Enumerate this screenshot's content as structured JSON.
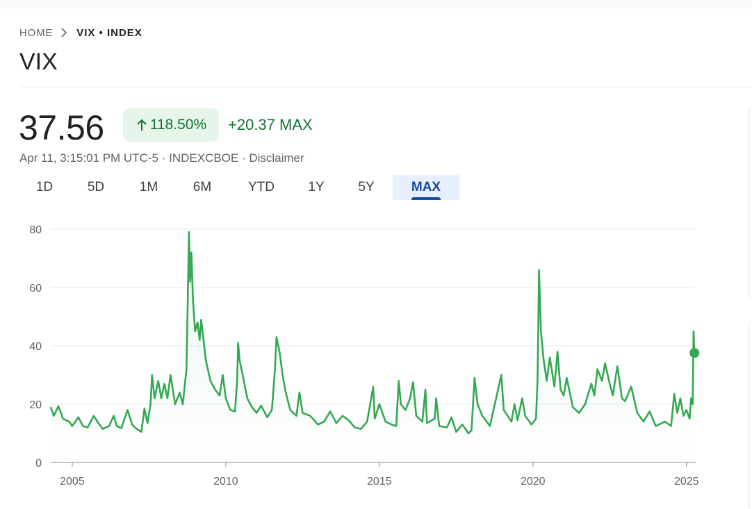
{
  "breadcrumb": {
    "home": "HOME",
    "current": "VIX • INDEX"
  },
  "page_title": "VIX",
  "quote": {
    "price": "37.56",
    "change_percent": "118.50%",
    "change_abs": "+20.37 MAX",
    "meta": "Apr 11, 3:15:01 PM UTC-5 · INDEXCBOE · Disclaimer"
  },
  "range_tabs": [
    {
      "label": "1D",
      "active": false
    },
    {
      "label": "5D",
      "active": false
    },
    {
      "label": "1M",
      "active": false
    },
    {
      "label": "6M",
      "active": false
    },
    {
      "label": "YTD",
      "active": false
    },
    {
      "label": "1Y",
      "active": false
    },
    {
      "label": "5Y",
      "active": false
    },
    {
      "label": "MAX",
      "active": true
    }
  ],
  "colors": {
    "positive": "#137333",
    "badge_bg": "#e6f4ea",
    "line": "#34a853",
    "active_tab_bg": "#e8f0fe",
    "active_tab_text": "#1a4d9c"
  },
  "icons": {
    "breadcrumb_separator": "chevron-right-icon",
    "change_arrow": "arrow-up-icon"
  },
  "chart_data": {
    "type": "line",
    "title": "",
    "xlabel": "",
    "ylabel": "",
    "xlim": [
      2004.3,
      2025.3
    ],
    "ylim": [
      0,
      80
    ],
    "y_ticks": [
      0,
      20,
      40,
      60,
      80
    ],
    "x_ticks": [
      2005,
      2010,
      2015,
      2020,
      2025
    ],
    "x_tick_labels": [
      "2005",
      "2010",
      "2015",
      "2020",
      "2025"
    ],
    "grid": true,
    "legend": "none",
    "area_fill": true,
    "series": [
      {
        "points": [
          [
            2004.3,
            19.0
          ],
          [
            2004.4,
            16.0
          ],
          [
            2004.55,
            19.3
          ],
          [
            2004.7,
            15.0
          ],
          [
            2004.9,
            14.0
          ],
          [
            2005.0,
            12.5
          ],
          [
            2005.2,
            15.5
          ],
          [
            2005.35,
            12.5
          ],
          [
            2005.5,
            12.0
          ],
          [
            2005.7,
            16.0
          ],
          [
            2005.85,
            13.5
          ],
          [
            2006.0,
            11.5
          ],
          [
            2006.2,
            12.5
          ],
          [
            2006.35,
            16.0
          ],
          [
            2006.45,
            12.5
          ],
          [
            2006.6,
            11.8
          ],
          [
            2006.8,
            18.0
          ],
          [
            2006.95,
            13.0
          ],
          [
            2007.1,
            11.5
          ],
          [
            2007.25,
            10.5
          ],
          [
            2007.35,
            18.5
          ],
          [
            2007.45,
            13.5
          ],
          [
            2007.55,
            20.0
          ],
          [
            2007.6,
            30.0
          ],
          [
            2007.68,
            22.0
          ],
          [
            2007.8,
            28.0
          ],
          [
            2007.9,
            22.0
          ],
          [
            2008.0,
            27.0
          ],
          [
            2008.1,
            22.0
          ],
          [
            2008.2,
            30.0
          ],
          [
            2008.35,
            20.0
          ],
          [
            2008.5,
            24.0
          ],
          [
            2008.6,
            20.0
          ],
          [
            2008.72,
            32.0
          ],
          [
            2008.76,
            55.0
          ],
          [
            2008.8,
            79.0
          ],
          [
            2008.84,
            62.0
          ],
          [
            2008.88,
            72.0
          ],
          [
            2008.93,
            56.0
          ],
          [
            2009.0,
            45.0
          ],
          [
            2009.08,
            48.0
          ],
          [
            2009.15,
            42.0
          ],
          [
            2009.2,
            49.0
          ],
          [
            2009.35,
            35.0
          ],
          [
            2009.5,
            28.0
          ],
          [
            2009.65,
            25.0
          ],
          [
            2009.8,
            23.0
          ],
          [
            2009.9,
            30.0
          ],
          [
            2010.0,
            22.0
          ],
          [
            2010.15,
            18.0
          ],
          [
            2010.3,
            17.5
          ],
          [
            2010.37,
            28.0
          ],
          [
            2010.4,
            41.0
          ],
          [
            2010.45,
            35.0
          ],
          [
            2010.55,
            30.0
          ],
          [
            2010.7,
            22.0
          ],
          [
            2010.85,
            19.0
          ],
          [
            2011.0,
            17.0
          ],
          [
            2011.15,
            19.5
          ],
          [
            2011.35,
            15.5
          ],
          [
            2011.5,
            18.0
          ],
          [
            2011.6,
            32.0
          ],
          [
            2011.65,
            43.0
          ],
          [
            2011.75,
            38.0
          ],
          [
            2011.85,
            30.0
          ],
          [
            2011.95,
            24.0
          ],
          [
            2012.1,
            18.0
          ],
          [
            2012.3,
            16.0
          ],
          [
            2012.4,
            24.0
          ],
          [
            2012.5,
            17.0
          ],
          [
            2012.75,
            16.0
          ],
          [
            2013.0,
            13.0
          ],
          [
            2013.2,
            14.0
          ],
          [
            2013.4,
            17.5
          ],
          [
            2013.6,
            13.5
          ],
          [
            2013.8,
            16.0
          ],
          [
            2014.0,
            14.5
          ],
          [
            2014.2,
            12.0
          ],
          [
            2014.4,
            11.5
          ],
          [
            2014.6,
            14.0
          ],
          [
            2014.8,
            26.0
          ],
          [
            2014.85,
            15.0
          ],
          [
            2015.0,
            20.0
          ],
          [
            2015.2,
            14.0
          ],
          [
            2015.4,
            13.0
          ],
          [
            2015.55,
            12.5
          ],
          [
            2015.63,
            28.0
          ],
          [
            2015.7,
            20.0
          ],
          [
            2015.85,
            18.0
          ],
          [
            2016.0,
            22.0
          ],
          [
            2016.1,
            27.5
          ],
          [
            2016.2,
            16.0
          ],
          [
            2016.4,
            14.0
          ],
          [
            2016.5,
            25.0
          ],
          [
            2016.55,
            13.5
          ],
          [
            2016.8,
            15.0
          ],
          [
            2016.85,
            22.0
          ],
          [
            2016.95,
            12.5
          ],
          [
            2017.2,
            12.0
          ],
          [
            2017.35,
            15.5
          ],
          [
            2017.5,
            10.5
          ],
          [
            2017.7,
            13.0
          ],
          [
            2017.9,
            10.0
          ],
          [
            2018.0,
            11.0
          ],
          [
            2018.1,
            29.0
          ],
          [
            2018.2,
            20.0
          ],
          [
            2018.35,
            16.0
          ],
          [
            2018.6,
            12.5
          ],
          [
            2018.8,
            22.0
          ],
          [
            2018.97,
            30.0
          ],
          [
            2019.05,
            18.0
          ],
          [
            2019.3,
            14.0
          ],
          [
            2019.4,
            20.0
          ],
          [
            2019.5,
            14.5
          ],
          [
            2019.65,
            22.0
          ],
          [
            2019.75,
            16.0
          ],
          [
            2019.95,
            13.0
          ],
          [
            2020.1,
            15.0
          ],
          [
            2020.15,
            28.0
          ],
          [
            2020.2,
            66.0
          ],
          [
            2020.26,
            45.0
          ],
          [
            2020.35,
            35.0
          ],
          [
            2020.45,
            28.0
          ],
          [
            2020.55,
            36.0
          ],
          [
            2020.7,
            26.0
          ],
          [
            2020.8,
            38.0
          ],
          [
            2020.9,
            25.0
          ],
          [
            2021.0,
            23.0
          ],
          [
            2021.1,
            29.0
          ],
          [
            2021.3,
            19.0
          ],
          [
            2021.5,
            17.0
          ],
          [
            2021.7,
            20.0
          ],
          [
            2021.9,
            27.0
          ],
          [
            2022.0,
            23.0
          ],
          [
            2022.1,
            32.0
          ],
          [
            2022.25,
            28.0
          ],
          [
            2022.35,
            34.0
          ],
          [
            2022.5,
            27.0
          ],
          [
            2022.6,
            23.0
          ],
          [
            2022.75,
            33.0
          ],
          [
            2022.9,
            22.0
          ],
          [
            2023.0,
            21.0
          ],
          [
            2023.2,
            26.0
          ],
          [
            2023.4,
            17.0
          ],
          [
            2023.6,
            14.0
          ],
          [
            2023.8,
            17.5
          ],
          [
            2024.0,
            12.5
          ],
          [
            2024.3,
            14.0
          ],
          [
            2024.5,
            12.5
          ],
          [
            2024.6,
            23.5
          ],
          [
            2024.7,
            17.0
          ],
          [
            2024.8,
            22.0
          ],
          [
            2024.9,
            16.0
          ],
          [
            2025.0,
            18.0
          ],
          [
            2025.1,
            15.0
          ],
          [
            2025.15,
            22.0
          ],
          [
            2025.2,
            20.0
          ],
          [
            2025.23,
            45.0
          ],
          [
            2025.26,
            37.56
          ]
        ]
      }
    ],
    "last_point": [
      2025.26,
      37.56
    ]
  }
}
